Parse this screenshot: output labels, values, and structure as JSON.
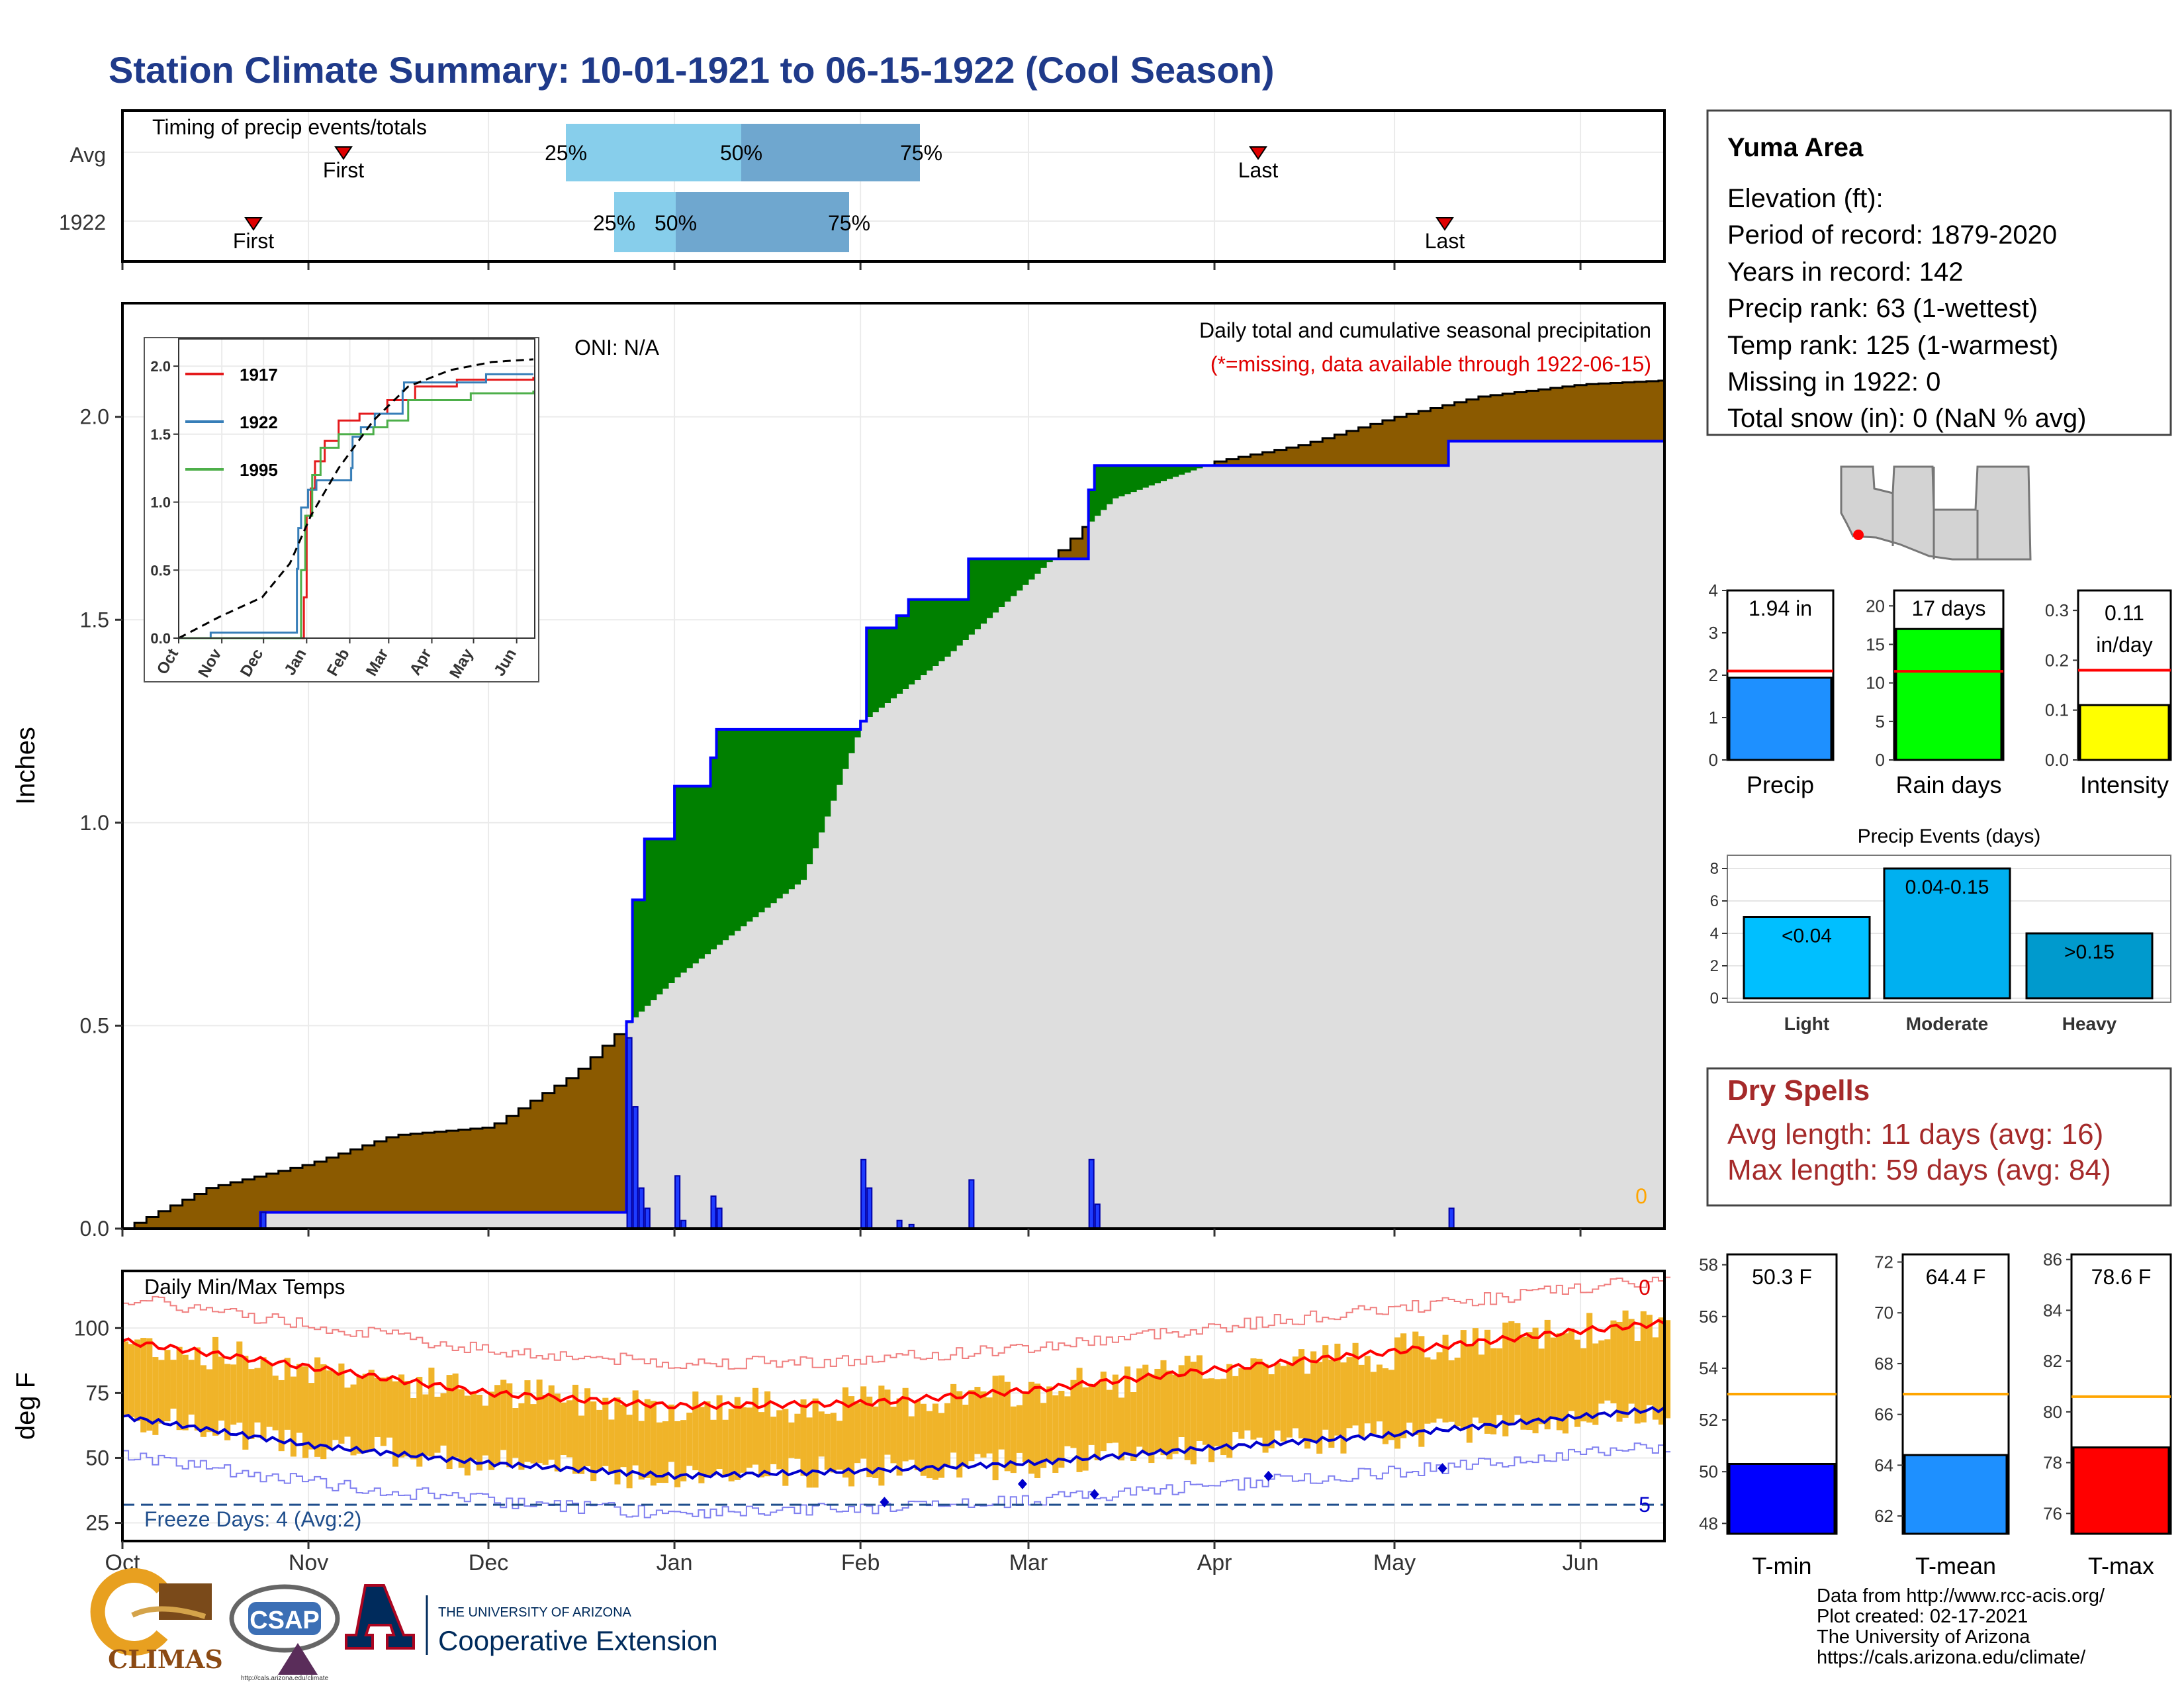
{
  "title": "Station Climate Summary: 10-01-1921 to 06-15-1922 (Cool Season)",
  "timing": {
    "title": "Timing of precip events/totals",
    "rows": [
      "Avg",
      "1922"
    ],
    "first_label": "First",
    "last_label": "Last",
    "pct_labels": [
      "25%",
      "50%",
      "75%"
    ]
  },
  "main": {
    "ylabel": "Inches",
    "yticks": [
      "0.0",
      "0.5",
      "1.0",
      "1.5",
      "2.0"
    ],
    "oni": "ONI: N/A",
    "caption": "Daily total and cumulative seasonal precipitation",
    "missing_note": "(*=missing, data available through 1922-06-15)",
    "missing_count": "0"
  },
  "inset": {
    "legend": [
      "1917",
      "1922",
      "1995"
    ],
    "yticks": [
      "0.0",
      "0.5",
      "1.0",
      "1.5",
      "2.0"
    ],
    "xticks": [
      "Oct",
      "Nov",
      "Dec",
      "Jan",
      "Feb",
      "Mar",
      "Apr",
      "May",
      "Jun"
    ]
  },
  "temps": {
    "title": "Daily Min/Max Temps",
    "ylabel": "deg F",
    "yticks": [
      "25",
      "50",
      "75",
      "100"
    ],
    "freeze": "Freeze Days: 4 (Avg:2)",
    "top_count": "0",
    "bottom_count": "5"
  },
  "months": [
    "Oct",
    "Nov",
    "Dec",
    "Jan",
    "Feb",
    "Mar",
    "Apr",
    "May",
    "Jun"
  ],
  "station": {
    "name": "Yuma Area",
    "lines": [
      "Elevation (ft):",
      "Period of record: 1879-2020",
      "Years in record: 142",
      "Precip rank: 63 (1-wettest)",
      "Temp rank: 125 (1-warmest)",
      "Missing in 1922: 0",
      "Total snow (in): 0 (NaN % avg)"
    ]
  },
  "summary_bars": [
    {
      "label": "Precip",
      "value_text": "1.94 in",
      "value": 1.94,
      "avg": 2.1,
      "ymax": 4,
      "yticks": [
        "0",
        "1",
        "2",
        "3",
        "4"
      ],
      "tick_vals": [
        0,
        1,
        2,
        3,
        4
      ],
      "color": "#1e90ff"
    },
    {
      "label": "Rain days",
      "value_text": "17 days",
      "value": 17,
      "avg": 11.5,
      "ymax": 22,
      "yticks": [
        "0",
        "5",
        "10",
        "15",
        "20"
      ],
      "tick_vals": [
        0,
        5,
        10,
        15,
        20
      ],
      "color": "#00ff00"
    },
    {
      "label": "Intensity",
      "value_text": "0.11 in/day",
      "value_text_lines": [
        "0.11",
        "in/day"
      ],
      "value": 0.11,
      "avg": 0.18,
      "ymax": 0.34,
      "yticks": [
        "0.0",
        "0.1",
        "0.2",
        "0.3"
      ],
      "tick_vals": [
        0,
        0.1,
        0.2,
        0.3
      ],
      "color": "#ffff00"
    }
  ],
  "events": {
    "title": "Precip Events (days)",
    "categories": [
      "Light",
      "Moderate",
      "Heavy"
    ],
    "labels": [
      "<0.04",
      "0.04-0.15",
      ">0.15"
    ],
    "values": [
      5,
      8,
      4
    ],
    "colors": [
      "#00bfff",
      "#00b0f0",
      "#009acd"
    ],
    "yticks": [
      "0",
      "2",
      "4",
      "6",
      "8"
    ]
  },
  "dry_spells": {
    "title": "Dry Spells",
    "avg_length": "Avg length: 11 days (avg: 16)",
    "max_length": "Max length: 59 days (avg: 84)"
  },
  "temp_bars": [
    {
      "label": "T-min",
      "value_text": "50.3 F",
      "value": 50.3,
      "avg": 53.0,
      "ymin": 47.6,
      "ymax": 58.4,
      "yticks": [
        "48",
        "50",
        "52",
        "54",
        "56",
        "58"
      ],
      "tick_vals": [
        48,
        50,
        52,
        54,
        56,
        58
      ],
      "color": "#0000ff"
    },
    {
      "label": "T-mean",
      "value_text": "64.4 F",
      "value": 64.4,
      "avg": 66.8,
      "ymin": 61.3,
      "ymax": 72.3,
      "yticks": [
        "62",
        "64",
        "66",
        "68",
        "70",
        "72"
      ],
      "tick_vals": [
        62,
        64,
        66,
        68,
        70,
        72
      ],
      "color": "#1e90ff"
    },
    {
      "label": "T-max",
      "value_text": "78.6 F",
      "value": 78.6,
      "avg": 80.6,
      "ymin": 75.2,
      "ymax": 86.2,
      "yticks": [
        "76",
        "78",
        "80",
        "82",
        "84",
        "86"
      ],
      "tick_vals": [
        76,
        78,
        80,
        82,
        84,
        86
      ],
      "color": "#ff0000"
    }
  ],
  "footer": {
    "lines": [
      "Data from http://www.rcc-acis.org/",
      "Plot created: 02-17-2021",
      "The University of Arizona",
      "https://cals.arizona.edu/climate/"
    ],
    "logo_climas": "CLIMAS",
    "logo_csap": "CSAP",
    "logo_csap_url": "http://cals.arizona.edu/climate",
    "logo_ua_small": "THE UNIVERSITY OF ARIZONA",
    "logo_ua_big": "Cooperative Extension"
  },
  "chart_data": {
    "type": "area",
    "title": "Daily total and cumulative seasonal precipitation",
    "ylabel": "Inches",
    "ylim": [
      0,
      2.28
    ],
    "x_range": [
      "1921-10-01",
      "1922-06-15"
    ],
    "series": [
      {
        "name": "1922",
        "values_note": "cumulative precipitation step series",
        "steps": [
          [
            "1921-10-01",
            0.0
          ],
          [
            "1921-10-24",
            0.04
          ],
          [
            "1921-12-24",
            0.51
          ],
          [
            "1921-12-25",
            0.81
          ],
          [
            "1921-12-27",
            0.96
          ],
          [
            "1922-01-01",
            1.09
          ],
          [
            "1922-01-07",
            1.16
          ],
          [
            "1922-01-08",
            1.23
          ],
          [
            "1922-02-01",
            1.25
          ],
          [
            "1922-02-02",
            1.48
          ],
          [
            "1922-02-07",
            1.51
          ],
          [
            "1922-02-09",
            1.55
          ],
          [
            "1922-02-19",
            1.65
          ],
          [
            "1922-02-28",
            1.65
          ],
          [
            "1922-03-11",
            1.82
          ],
          [
            "1922-03-12",
            1.88
          ],
          [
            "1922-05-10",
            1.94
          ],
          [
            "1922-06-15",
            1.94
          ]
        ]
      },
      {
        "name": "Average",
        "values_note": "cumulative average precipitation",
        "points": [
          [
            "1921-10-01",
            0.0
          ],
          [
            "1921-10-15",
            0.1
          ],
          [
            "1921-11-01",
            0.16
          ],
          [
            "1921-11-15",
            0.23
          ],
          [
            "1921-12-01",
            0.25
          ],
          [
            "1921-12-15",
            0.38
          ],
          [
            "1922-01-01",
            0.62
          ],
          [
            "1922-01-22",
            0.86
          ],
          [
            "1922-02-01",
            1.25
          ],
          [
            "1922-02-15",
            1.41
          ],
          [
            "1922-03-01",
            1.6
          ],
          [
            "1922-03-15",
            1.8
          ],
          [
            "1922-04-01",
            1.89
          ],
          [
            "1922-04-15",
            1.93
          ],
          [
            "1922-05-01",
            2.0
          ],
          [
            "1922-05-15",
            2.05
          ],
          [
            "1922-06-01",
            2.08
          ],
          [
            "1922-06-15",
            2.09
          ]
        ]
      }
    ],
    "daily_bars": [
      [
        "1921-10-24",
        0.04
      ],
      [
        "1921-12-24",
        0.47
      ],
      [
        "1921-12-25",
        0.3
      ],
      [
        "1921-12-26",
        0.1
      ],
      [
        "1921-12-27",
        0.05
      ],
      [
        "1922-01-01",
        0.13
      ],
      [
        "1922-01-02",
        0.02
      ],
      [
        "1922-01-07",
        0.08
      ],
      [
        "1922-01-08",
        0.05
      ],
      [
        "1922-02-01",
        0.17
      ],
      [
        "1922-02-02",
        0.1
      ],
      [
        "1922-02-07",
        0.02
      ],
      [
        "1922-02-09",
        0.01
      ],
      [
        "1922-02-19",
        0.12
      ],
      [
        "1922-03-11",
        0.17
      ],
      [
        "1922-03-12",
        0.06
      ],
      [
        "1922-05-10",
        0.05
      ]
    ],
    "inset": {
      "type": "line",
      "ylim": [
        0,
        2.05
      ],
      "series": [
        {
          "name": "1917",
          "points": [
            [
              0,
              0
            ],
            [
              88,
              0
            ],
            [
              90,
              0.3
            ],
            [
              92,
              0.9
            ],
            [
              95,
              1.1
            ],
            [
              98,
              1.3
            ],
            [
              105,
              1.45
            ],
            [
              115,
              1.6
            ],
            [
              130,
              1.65
            ],
            [
              150,
              1.75
            ],
            [
              170,
              1.85
            ],
            [
              200,
              1.9
            ],
            [
              255,
              1.92
            ]
          ]
        },
        {
          "name": "1922",
          "points": [
            [
              0,
              0
            ],
            [
              23,
              0.04
            ],
            [
              84,
              0.04
            ],
            [
              85,
              0.51
            ],
            [
              86,
              0.81
            ],
            [
              88,
              0.96
            ],
            [
              93,
              1.09
            ],
            [
              99,
              1.16
            ],
            [
              124,
              1.25
            ],
            [
              125,
              1.48
            ],
            [
              131,
              1.55
            ],
            [
              141,
              1.65
            ],
            [
              161,
              1.82
            ],
            [
              162,
              1.88
            ],
            [
              221,
              1.94
            ],
            [
              255,
              1.94
            ]
          ]
        },
        {
          "name": "1995",
          "points": [
            [
              0,
              0
            ],
            [
              85,
              0
            ],
            [
              88,
              0.5
            ],
            [
              91,
              0.9
            ],
            [
              96,
              1.2
            ],
            [
              102,
              1.4
            ],
            [
              115,
              1.5
            ],
            [
              140,
              1.55
            ],
            [
              150,
              1.6
            ],
            [
              165,
              1.75
            ],
            [
              210,
              1.8
            ],
            [
              255,
              1.82
            ]
          ]
        },
        {
          "name": "avg",
          "points": [
            [
              0,
              0
            ],
            [
              30,
              0.16
            ],
            [
              60,
              0.3
            ],
            [
              80,
              0.55
            ],
            [
              95,
              0.9
            ],
            [
              115,
              1.25
            ],
            [
              140,
              1.6
            ],
            [
              165,
              1.85
            ],
            [
              195,
              1.97
            ],
            [
              225,
              2.03
            ],
            [
              255,
              2.05
            ]
          ]
        }
      ]
    },
    "temps": {
      "ylim": [
        18,
        122
      ],
      "avg_max": [
        [
          0,
          95
        ],
        [
          31,
          85
        ],
        [
          61,
          75
        ],
        [
          92,
          70
        ],
        [
          123,
          71
        ],
        [
          151,
          76
        ],
        [
          182,
          84
        ],
        [
          212,
          91
        ],
        [
          243,
          99
        ],
        [
          257,
          102
        ]
      ],
      "avg_min": [
        [
          0,
          66
        ],
        [
          31,
          55
        ],
        [
          61,
          48
        ],
        [
          92,
          43
        ],
        [
          123,
          45
        ],
        [
          151,
          48
        ],
        [
          182,
          54
        ],
        [
          212,
          59
        ],
        [
          243,
          66
        ],
        [
          257,
          69
        ]
      ]
    }
  }
}
